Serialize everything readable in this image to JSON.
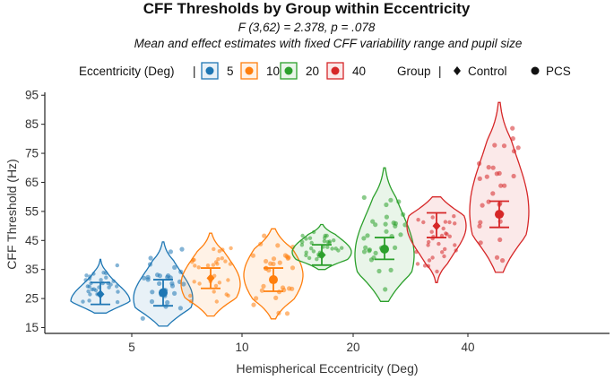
{
  "chart_data": {
    "type": "violin",
    "title": "CFF Thresholds by Group within Eccentricity",
    "subtitle": "F (3,62) = 2.378, p = .078",
    "caption": "Mean and effect estimates with fixed CFF variability range and pupil size",
    "xlabel": "Hemispherical Eccentricity (Deg)",
    "ylabel": "CFF Threshold (Hz)",
    "ylim": [
      13,
      96
    ],
    "yticks": [
      15,
      25,
      35,
      45,
      55,
      65,
      75,
      85,
      95
    ],
    "categories": [
      "5",
      "10",
      "20",
      "40"
    ],
    "legend": {
      "eccentricity_title": "Eccentricity (Deg)",
      "eccentricity_sep": "|",
      "eccentricity_items": [
        {
          "label": "5",
          "color": "#1f77b4"
        },
        {
          "label": "10",
          "color": "#ff7f0e"
        },
        {
          "label": "20",
          "color": "#2ca02c"
        },
        {
          "label": "40",
          "color": "#d62728"
        }
      ],
      "group_title": "Group",
      "group_sep": "|",
      "group_items": [
        {
          "label": "Control",
          "shape": "diamond"
        },
        {
          "label": "PCS",
          "shape": "circle"
        }
      ]
    },
    "series": [
      {
        "eccentricity": "5",
        "group": "Control",
        "color": "#1f77b4",
        "min": 20,
        "max": 38.5,
        "mean": 26.5,
        "ci": [
          23,
          30.5
        ],
        "mode": 24
      },
      {
        "eccentricity": "5",
        "group": "PCS",
        "color": "#1f77b4",
        "min": 15.5,
        "max": 44.5,
        "mean": 27,
        "ci": [
          22.5,
          31.5
        ],
        "mode": 25
      },
      {
        "eccentricity": "10",
        "group": "Control",
        "color": "#ff7f0e",
        "min": 19,
        "max": 47.5,
        "mean": 32,
        "ci": [
          28.5,
          35.5
        ],
        "mode": 30
      },
      {
        "eccentricity": "10",
        "group": "PCS",
        "color": "#ff7f0e",
        "min": 18,
        "max": 49,
        "mean": 31.5,
        "ci": [
          27.5,
          35.5
        ],
        "mode": 33
      },
      {
        "eccentricity": "20",
        "group": "Control",
        "color": "#2ca02c",
        "min": 35,
        "max": 50.5,
        "mean": 40,
        "ci": [
          36.5,
          43.5
        ],
        "mode": 41
      },
      {
        "eccentricity": "20",
        "group": "PCS",
        "color": "#2ca02c",
        "min": 24,
        "max": 70,
        "mean": 42,
        "ci": [
          38.5,
          46
        ],
        "mode": 40
      },
      {
        "eccentricity": "40",
        "group": "Control",
        "color": "#d62728",
        "min": 30.5,
        "max": 60,
        "mean": 50,
        "ci": [
          46,
          54.5
        ],
        "mode": 50
      },
      {
        "eccentricity": "40",
        "group": "PCS",
        "color": "#d62728",
        "min": 34,
        "max": 92.5,
        "mean": 54,
        "ci": [
          49.5,
          58.5
        ],
        "mode": 55
      }
    ]
  }
}
